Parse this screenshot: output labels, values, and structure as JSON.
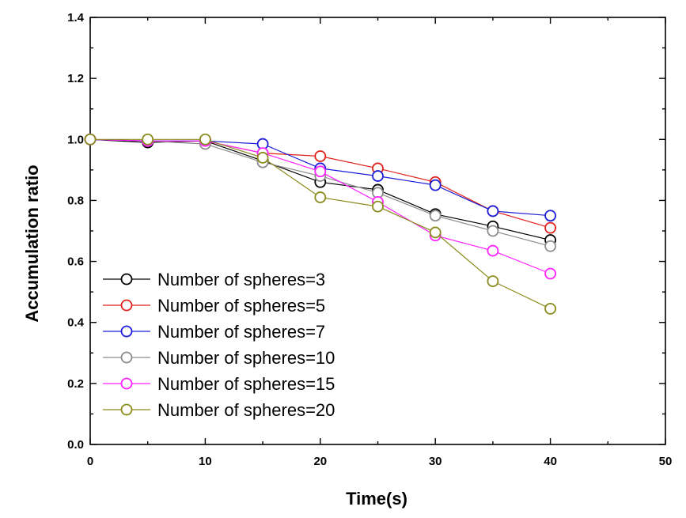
{
  "chart_data": {
    "type": "line",
    "title": "",
    "xlabel": "Time(s)",
    "ylabel": "Accumulation ratio",
    "xlim": [
      0,
      50
    ],
    "ylim": [
      0.0,
      1.4
    ],
    "xticks": [
      0,
      10,
      20,
      30,
      40,
      50
    ],
    "xtick_labels": [
      "0",
      "10",
      "20",
      "30",
      "40",
      "50"
    ],
    "yticks": [
      0.0,
      0.2,
      0.4,
      0.6,
      0.8,
      1.0,
      1.2,
      1.4
    ],
    "ytick_labels": [
      "0.0",
      "0.2",
      "0.4",
      "0.6",
      "0.8",
      "1.0",
      "1.2",
      "1.4"
    ],
    "grid": false,
    "legend_position": "bottom-left",
    "x": [
      0,
      5,
      10,
      15,
      20,
      25,
      30,
      35,
      40
    ],
    "series": [
      {
        "name": "Number of spheres=3",
        "color": "#000000",
        "values": [
          1.0,
          0.99,
          0.995,
          0.93,
          0.86,
          0.835,
          0.755,
          0.715,
          0.67
        ]
      },
      {
        "name": "Number of spheres=5",
        "color": "#e0201b",
        "values": [
          1.0,
          0.995,
          0.995,
          0.955,
          0.945,
          0.905,
          0.86,
          0.765,
          0.71
        ]
      },
      {
        "name": "Number of spheres=7",
        "color": "#1c1cd6",
        "values": [
          1.0,
          0.995,
          0.995,
          0.985,
          0.905,
          0.88,
          0.85,
          0.765,
          0.75
        ]
      },
      {
        "name": "Number of spheres=10",
        "color": "#8c8c8c",
        "values": [
          1.0,
          0.995,
          0.985,
          0.925,
          0.88,
          0.825,
          0.75,
          0.7,
          0.65
        ]
      },
      {
        "name": "Number of spheres=15",
        "color": "#ff21ff",
        "values": [
          1.0,
          0.995,
          0.995,
          0.955,
          0.895,
          0.795,
          0.685,
          0.635,
          0.56
        ]
      },
      {
        "name": "Number of spheres=20",
        "color": "#8a8a1c",
        "values": [
          1.0,
          1.0,
          1.0,
          0.94,
          0.81,
          0.78,
          0.695,
          0.535,
          0.445
        ]
      }
    ]
  }
}
